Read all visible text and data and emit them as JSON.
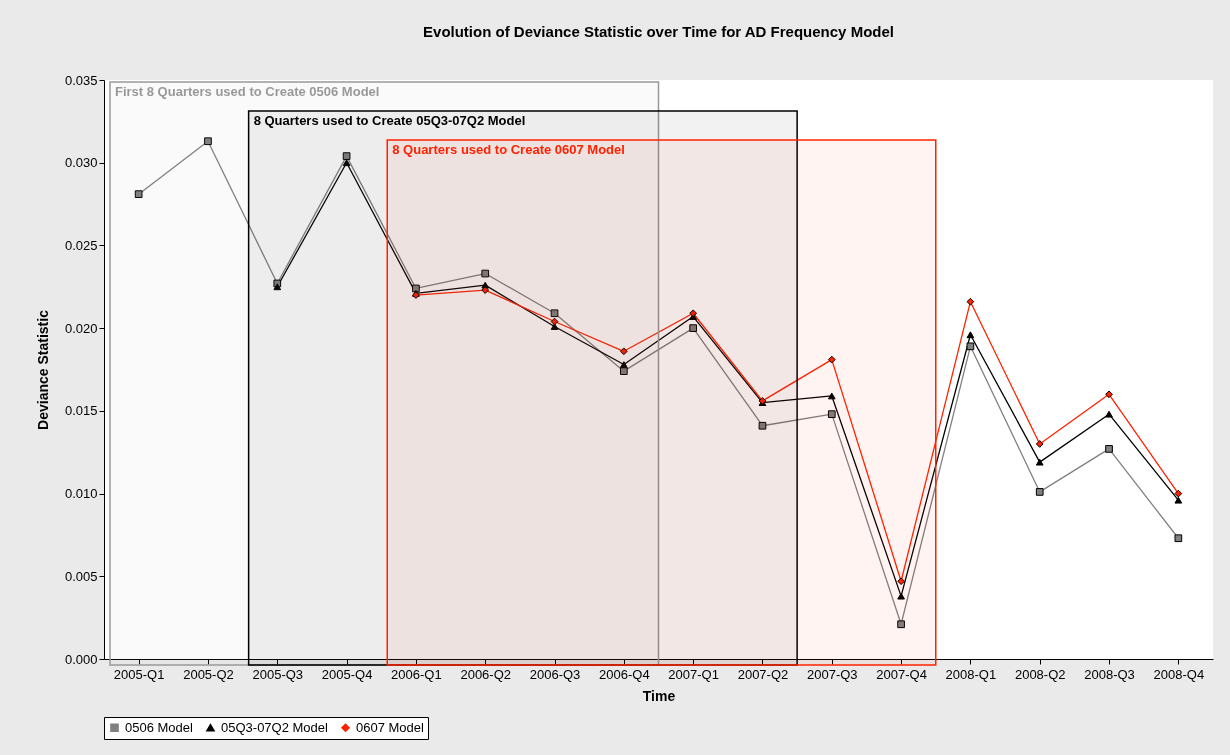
{
  "chart_data": {
    "type": "line",
    "title": "Evolution of Deviance Statistic over Time for AD Frequency Model",
    "xlabel": "Time",
    "ylabel": "Deviance Statistic",
    "categories": [
      "2005-Q1",
      "2005-Q2",
      "2005-Q3",
      "2005-Q4",
      "2006-Q1",
      "2006-Q2",
      "2006-Q3",
      "2006-Q4",
      "2007-Q1",
      "2007-Q2",
      "2007-Q3",
      "2007-Q4",
      "2008-Q1",
      "2008-Q2",
      "2008-Q3",
      "2008-Q4"
    ],
    "series": [
      {
        "name": "0506 Model",
        "color": "#808080",
        "marker": "square",
        "values": [
          0.0281,
          0.0313,
          0.0227,
          0.0304,
          0.0224,
          0.0233,
          0.0209,
          0.0174,
          0.02,
          0.0141,
          0.0148,
          0.0021,
          0.0189,
          0.0101,
          0.0127,
          0.0073
        ]
      },
      {
        "name": "05Q3-07Q2 Model",
        "color": "#000000",
        "marker": "triangle",
        "values": [
          null,
          null,
          0.0225,
          0.03,
          0.0221,
          0.0226,
          0.0201,
          0.0178,
          0.0207,
          0.0155,
          0.0159,
          0.0038,
          0.0196,
          0.0119,
          0.0148,
          0.0096
        ]
      },
      {
        "name": "0607 Model",
        "color": "#ff2200",
        "marker": "diamond",
        "values": [
          null,
          null,
          null,
          null,
          0.022,
          0.0223,
          0.0204,
          0.0186,
          0.0209,
          0.0156,
          0.0181,
          0.0047,
          0.0216,
          0.013,
          0.016,
          0.01
        ]
      }
    ],
    "ylim": [
      0,
      0.035
    ],
    "yticks": [
      {
        "value": 0,
        "label": "0.000"
      },
      {
        "value": 0.005,
        "label": "0.005"
      },
      {
        "value": 0.01,
        "label": "0.010"
      },
      {
        "value": 0.015,
        "label": "0.015"
      },
      {
        "value": 0.02,
        "label": "0.020"
      },
      {
        "value": 0.025,
        "label": "0.025"
      },
      {
        "value": 0.03,
        "label": "0.030"
      },
      {
        "value": 0.035,
        "label": "0.035"
      }
    ],
    "bands": [
      {
        "axis": "x",
        "from": "2005-Q1",
        "to": "2006-Q4",
        "label": "First 8 Quarters used to Create 0506 Model",
        "color": "#999999"
      },
      {
        "axis": "x",
        "from": "2005-Q3",
        "to": "2007-Q2",
        "label": "8 Quarters used to Create 05Q3-07Q2 Model",
        "color": "#000000"
      },
      {
        "axis": "x",
        "from": "2006-Q1",
        "to": "2007-Q4",
        "label": "8 Quarters used to Create 0607 Model",
        "color": "#ff2200"
      }
    ],
    "grid": false,
    "legend": "bottom",
    "line_style": "solid"
  }
}
